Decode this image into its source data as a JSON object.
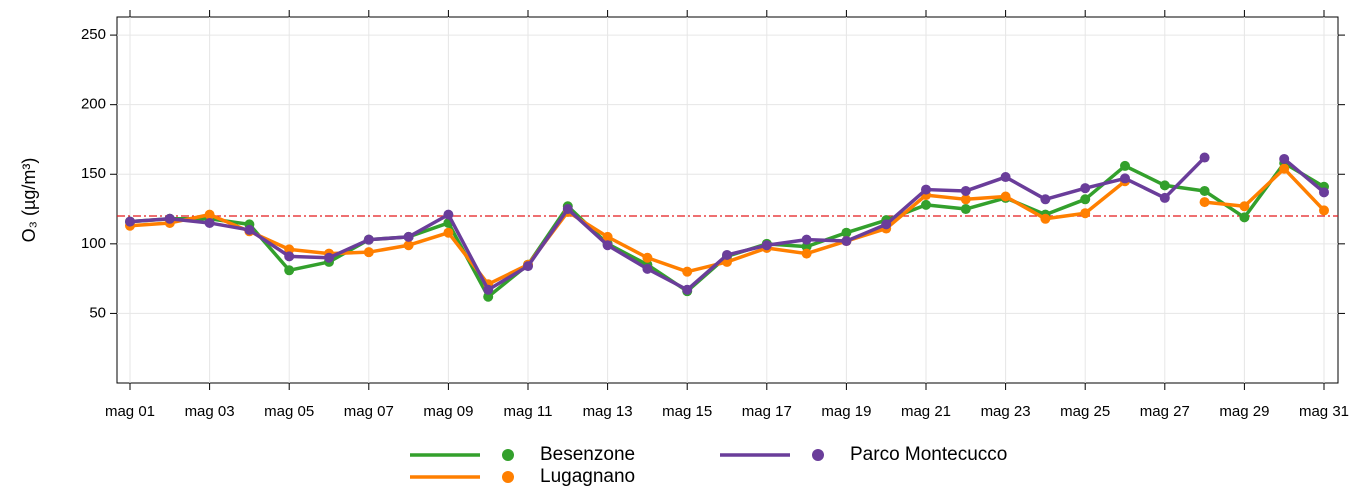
{
  "chart_data": {
    "type": "line",
    "y_label": "O₃ (µg/m³)",
    "categories": [
      "mag 01",
      null,
      "mag 03",
      null,
      "mag 05",
      null,
      "mag 07",
      null,
      "mag 09",
      null,
      "mag 11",
      null,
      "mag 13",
      null,
      "mag 15",
      null,
      "mag 17",
      null,
      "mag 19",
      null,
      "mag 21",
      null,
      "mag 23",
      null,
      "mag 25",
      null,
      "mag 27",
      null,
      "mag 29",
      null,
      "mag 31"
    ],
    "series": [
      {
        "name": "Besenzone",
        "color": "#33a02c",
        "values": [
          116,
          118,
          118,
          114,
          81,
          87,
          103,
          105,
          115,
          62,
          85,
          127,
          100,
          85,
          66,
          91,
          100,
          98,
          108,
          117,
          128,
          125,
          133,
          121,
          132,
          156,
          142,
          138,
          119,
          158,
          141
        ]
      },
      {
        "name": "Lugagnano",
        "color": "#ff7f00",
        "values": [
          113,
          115,
          121,
          109,
          96,
          93,
          94,
          99,
          108,
          71,
          85,
          123,
          105,
          90,
          80,
          87,
          97,
          93,
          102,
          111,
          135,
          132,
          134,
          118,
          122,
          145,
          null,
          130,
          127,
          154,
          124
        ]
      },
      {
        "name": "Parco Montecucco",
        "color": "#6a3d9a",
        "values": [
          116,
          118,
          115,
          110,
          91,
          90,
          103,
          105,
          121,
          67,
          84,
          125,
          99,
          82,
          67,
          92,
          99,
          103,
          102,
          114,
          139,
          138,
          148,
          132,
          140,
          147,
          133,
          162,
          null,
          161,
          137
        ]
      }
    ],
    "threshold": {
      "value": 120,
      "color": "#e41a1c"
    },
    "ylim": [
      0,
      263
    ],
    "yticks": [
      50,
      100,
      150,
      200,
      250
    ],
    "grid": true
  }
}
